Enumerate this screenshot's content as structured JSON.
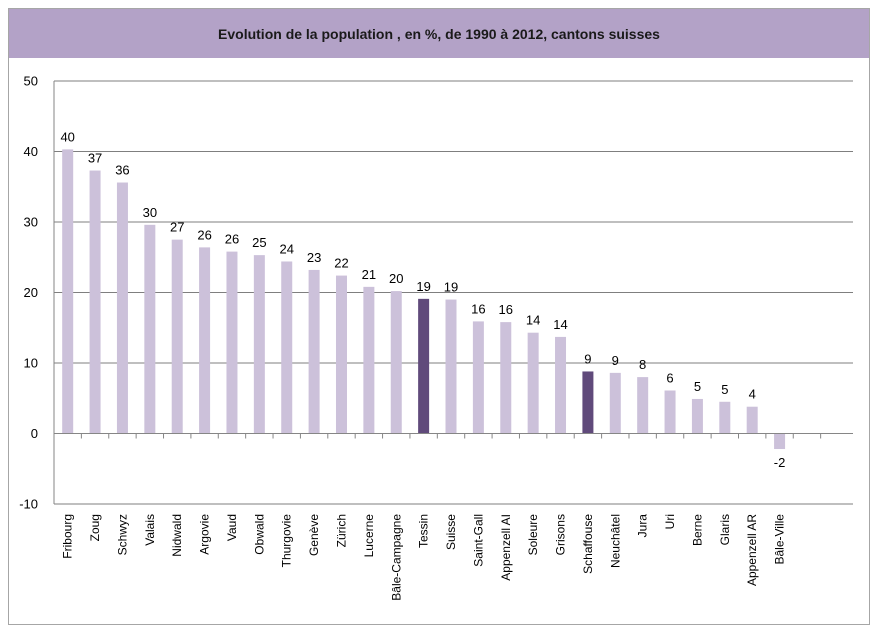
{
  "chart_data": {
    "type": "bar",
    "title": "Evolution de la population , en %, de 1990 à 2012, cantons suisses",
    "xlabel": "",
    "ylabel": "",
    "ylim": [
      -10,
      50
    ],
    "yticks": [
      -10,
      0,
      10,
      20,
      30,
      40,
      50
    ],
    "grid": true,
    "legend": "none",
    "colors": {
      "default": "#ccc1da",
      "highlight": "#604a7b",
      "title_bg": "#b3a2c7",
      "grid": "#7f7f7f"
    },
    "categories": [
      "Fribourg",
      "Zoug",
      "Schwyz",
      "Valais",
      "Nidwald",
      "Argovie",
      "Vaud",
      "Obwald",
      "Thurgovie",
      "Genève",
      "Zürich",
      "Lucerne",
      "Bâle-Campagne",
      "Tessin",
      "Suisse",
      "Saint-Gall",
      "Appenzell AI",
      "Soleure",
      "Grisons",
      "Schaffouse",
      "Neuchâtel",
      "Jura",
      "Uri",
      "Berne",
      "Glaris",
      "Appenzell AR",
      "Bâle-Ville"
    ],
    "values": [
      40.3,
      37.3,
      35.6,
      29.6,
      27.5,
      26.4,
      25.8,
      25.3,
      24.4,
      23.2,
      22.4,
      20.8,
      20.2,
      19.1,
      19.0,
      15.9,
      15.8,
      14.3,
      13.7,
      8.8,
      8.6,
      8.0,
      6.1,
      4.9,
      4.5,
      3.8,
      -2.2
    ],
    "labels": [
      "40",
      "37",
      "36",
      "30",
      "27",
      "26",
      "26",
      "25",
      "24",
      "23",
      "22",
      "21",
      "20",
      "19",
      "19",
      "16",
      "16",
      "14",
      "14",
      "9",
      "9",
      "8",
      "6",
      "5",
      "5",
      "4",
      "-2"
    ],
    "highlighted": [
      "Tessin",
      "Schaffouse"
    ]
  }
}
